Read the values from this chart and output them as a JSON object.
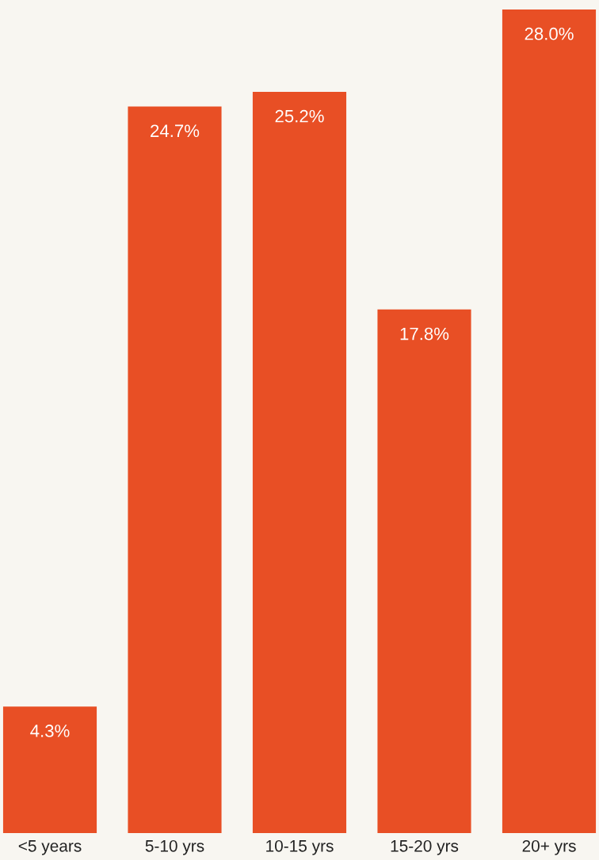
{
  "chart_data": {
    "type": "bar",
    "categories": [
      "<5 years",
      "5-10 yrs",
      "10-15 yrs",
      "15-20 yrs",
      "20+ yrs"
    ],
    "values": [
      4.3,
      24.7,
      25.2,
      17.8,
      28.0
    ],
    "value_labels": [
      "4.3%",
      "24.7%",
      "25.2%",
      "17.8%",
      "28.0%"
    ],
    "color": "#e84f25",
    "grid": false,
    "legend": false
  }
}
